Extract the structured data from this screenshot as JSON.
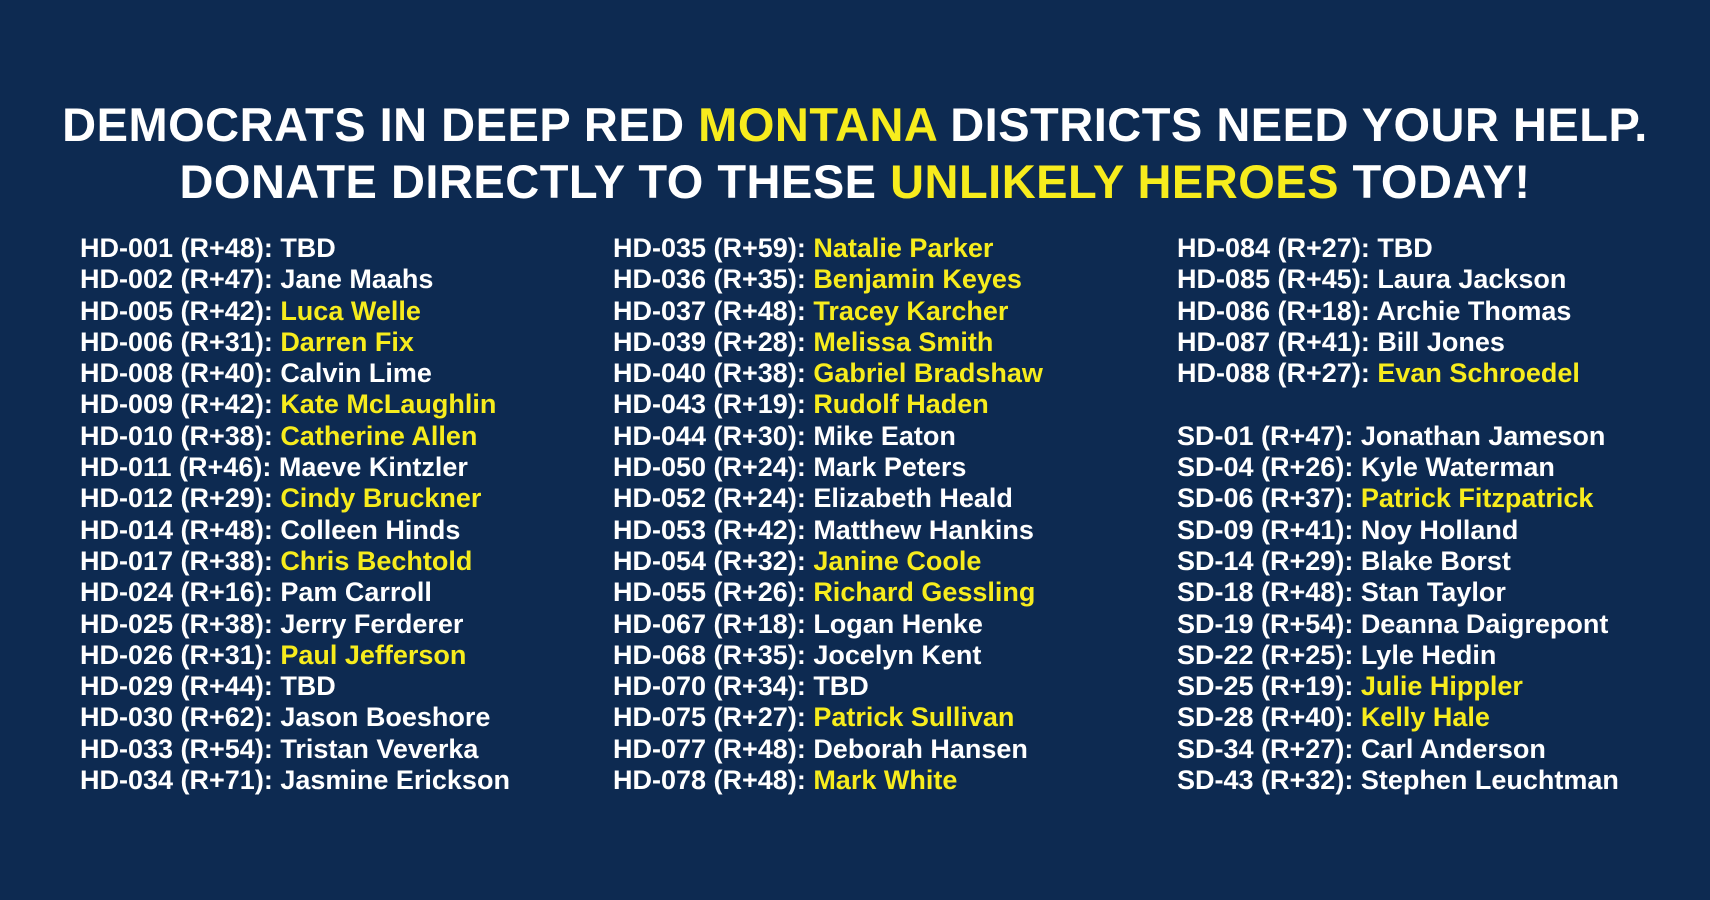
{
  "colors": {
    "background": "#0D2A51",
    "accent_yellow": "#F7EC1D",
    "text_white": "#FFFFFF"
  },
  "headline": {
    "lines": [
      {
        "segments": [
          {
            "text": "DEMOCRATS IN DEEP RED ",
            "highlight": false
          },
          {
            "text": "MONTANA",
            "highlight": true
          },
          {
            "text": " DISTRICTS NEED YOUR HELP.",
            "highlight": false
          }
        ]
      },
      {
        "segments": [
          {
            "text": "DONATE DIRECTLY TO THESE ",
            "highlight": false
          },
          {
            "text": "UNLIKELY HEROES",
            "highlight": true
          },
          {
            "text": " TODAY!",
            "highlight": false
          }
        ]
      }
    ]
  },
  "columns": [
    {
      "rows": [
        {
          "district": "HD-001",
          "lean": "R+48",
          "candidate": "TBD",
          "highlight": false
        },
        {
          "district": "HD-002",
          "lean": "R+47",
          "candidate": "Jane Maahs",
          "highlight": false
        },
        {
          "district": "HD-005",
          "lean": "R+42",
          "candidate": "Luca Welle",
          "highlight": true
        },
        {
          "district": "HD-006",
          "lean": "R+31",
          "candidate": "Darren Fix",
          "highlight": true
        },
        {
          "district": "HD-008",
          "lean": "R+40",
          "candidate": "Calvin Lime",
          "highlight": false
        },
        {
          "district": "HD-009",
          "lean": "R+42",
          "candidate": "Kate McLaughlin",
          "highlight": true
        },
        {
          "district": "HD-010",
          "lean": "R+38",
          "candidate": "Catherine Allen",
          "highlight": true
        },
        {
          "district": "HD-011",
          "lean": "R+46",
          "candidate": "Maeve Kintzler",
          "highlight": false
        },
        {
          "district": "HD-012",
          "lean": "R+29",
          "candidate": "Cindy Bruckner",
          "highlight": true
        },
        {
          "district": "HD-014",
          "lean": "R+48",
          "candidate": "Colleen Hinds",
          "highlight": false
        },
        {
          "district": "HD-017",
          "lean": "R+38",
          "candidate": "Chris Bechtold",
          "highlight": true
        },
        {
          "district": "HD-024",
          "lean": "R+16",
          "candidate": "Pam Carroll",
          "highlight": false
        },
        {
          "district": "HD-025",
          "lean": "R+38",
          "candidate": "Jerry Ferderer",
          "highlight": false
        },
        {
          "district": "HD-026",
          "lean": "R+31",
          "candidate": "Paul Jefferson",
          "highlight": true
        },
        {
          "district": "HD-029",
          "lean": "R+44",
          "candidate": "TBD",
          "highlight": false
        },
        {
          "district": "HD-030",
          "lean": "R+62",
          "candidate": "Jason Boeshore",
          "highlight": false
        },
        {
          "district": "HD-033",
          "lean": "R+54",
          "candidate": "Tristan Veverka",
          "highlight": false
        },
        {
          "district": "HD-034",
          "lean": "R+71",
          "candidate": "Jasmine Erickson",
          "highlight": false
        }
      ]
    },
    {
      "rows": [
        {
          "district": "HD-035",
          "lean": "R+59",
          "candidate": "Natalie Parker",
          "highlight": true
        },
        {
          "district": "HD-036",
          "lean": "R+35",
          "candidate": "Benjamin Keyes",
          "highlight": true
        },
        {
          "district": "HD-037",
          "lean": "R+48",
          "candidate": "Tracey Karcher",
          "highlight": true
        },
        {
          "district": "HD-039",
          "lean": "R+28",
          "candidate": "Melissa Smith",
          "highlight": true
        },
        {
          "district": "HD-040",
          "lean": "R+38",
          "candidate": "Gabriel Bradshaw",
          "highlight": true
        },
        {
          "district": "HD-043",
          "lean": "R+19",
          "candidate": "Rudolf Haden",
          "highlight": true
        },
        {
          "district": "HD-044",
          "lean": "R+30",
          "candidate": "Mike Eaton",
          "highlight": false
        },
        {
          "district": "HD-050",
          "lean": "R+24",
          "candidate": "Mark Peters",
          "highlight": false
        },
        {
          "district": "HD-052",
          "lean": "R+24",
          "candidate": "Elizabeth Heald",
          "highlight": false
        },
        {
          "district": "HD-053",
          "lean": "R+42",
          "candidate": "Matthew Hankins",
          "highlight": false
        },
        {
          "district": "HD-054",
          "lean": "R+32",
          "candidate": "Janine Coole",
          "highlight": true
        },
        {
          "district": "HD-055",
          "lean": "R+26",
          "candidate": "Richard Gessling",
          "highlight": true
        },
        {
          "district": "HD-067",
          "lean": "R+18",
          "candidate": "Logan Henke",
          "highlight": false
        },
        {
          "district": "HD-068",
          "lean": "R+35",
          "candidate": "Jocelyn Kent",
          "highlight": false
        },
        {
          "district": "HD-070",
          "lean": "R+34",
          "candidate": "TBD",
          "highlight": false
        },
        {
          "district": "HD-075",
          "lean": "R+27",
          "candidate": "Patrick Sullivan",
          "highlight": true
        },
        {
          "district": "HD-077",
          "lean": "R+48",
          "candidate": "Deborah Hansen",
          "highlight": false
        },
        {
          "district": "HD-078",
          "lean": "R+48",
          "candidate": "Mark White",
          "highlight": true
        }
      ]
    },
    {
      "rows": [
        {
          "district": "HD-084",
          "lean": "R+27",
          "candidate": "TBD",
          "highlight": false
        },
        {
          "district": "HD-085",
          "lean": "R+45",
          "candidate": "Laura Jackson",
          "highlight": false
        },
        {
          "district": "HD-086",
          "lean": "R+18",
          "candidate": "Archie Thomas",
          "highlight": false
        },
        {
          "district": "HD-087",
          "lean": "R+41",
          "candidate": "Bill Jones",
          "highlight": false
        },
        {
          "district": "HD-088",
          "lean": "R+27",
          "candidate": "Evan Schroedel",
          "highlight": true
        },
        {
          "spacer": true
        },
        {
          "district": "SD-01",
          "lean": "R+47",
          "candidate": "Jonathan Jameson",
          "highlight": false
        },
        {
          "district": "SD-04",
          "lean": "R+26",
          "candidate": "Kyle Waterman",
          "highlight": false
        },
        {
          "district": "SD-06",
          "lean": "R+37",
          "candidate": "Patrick Fitzpatrick",
          "highlight": true
        },
        {
          "district": "SD-09",
          "lean": "R+41",
          "candidate": "Noy Holland",
          "highlight": false
        },
        {
          "district": "SD-14",
          "lean": "R+29",
          "candidate": "Blake Borst",
          "highlight": false
        },
        {
          "district": "SD-18",
          "lean": "R+48",
          "candidate": "Stan Taylor",
          "highlight": false
        },
        {
          "district": "SD-19",
          "lean": "R+54",
          "candidate": "Deanna Daigrepont",
          "highlight": false
        },
        {
          "district": "SD-22",
          "lean": "R+25",
          "candidate": "Lyle Hedin",
          "highlight": false
        },
        {
          "district": "SD-25",
          "lean": "R+19",
          "candidate": "Julie Hippler",
          "highlight": true
        },
        {
          "district": "SD-28",
          "lean": "R+40",
          "candidate": "Kelly Hale",
          "highlight": true
        },
        {
          "district": "SD-34",
          "lean": "R+27",
          "candidate": "Carl Anderson",
          "highlight": false
        },
        {
          "district": "SD-43",
          "lean": "R+32",
          "candidate": "Stephen Leuchtman",
          "highlight": false
        }
      ]
    }
  ]
}
